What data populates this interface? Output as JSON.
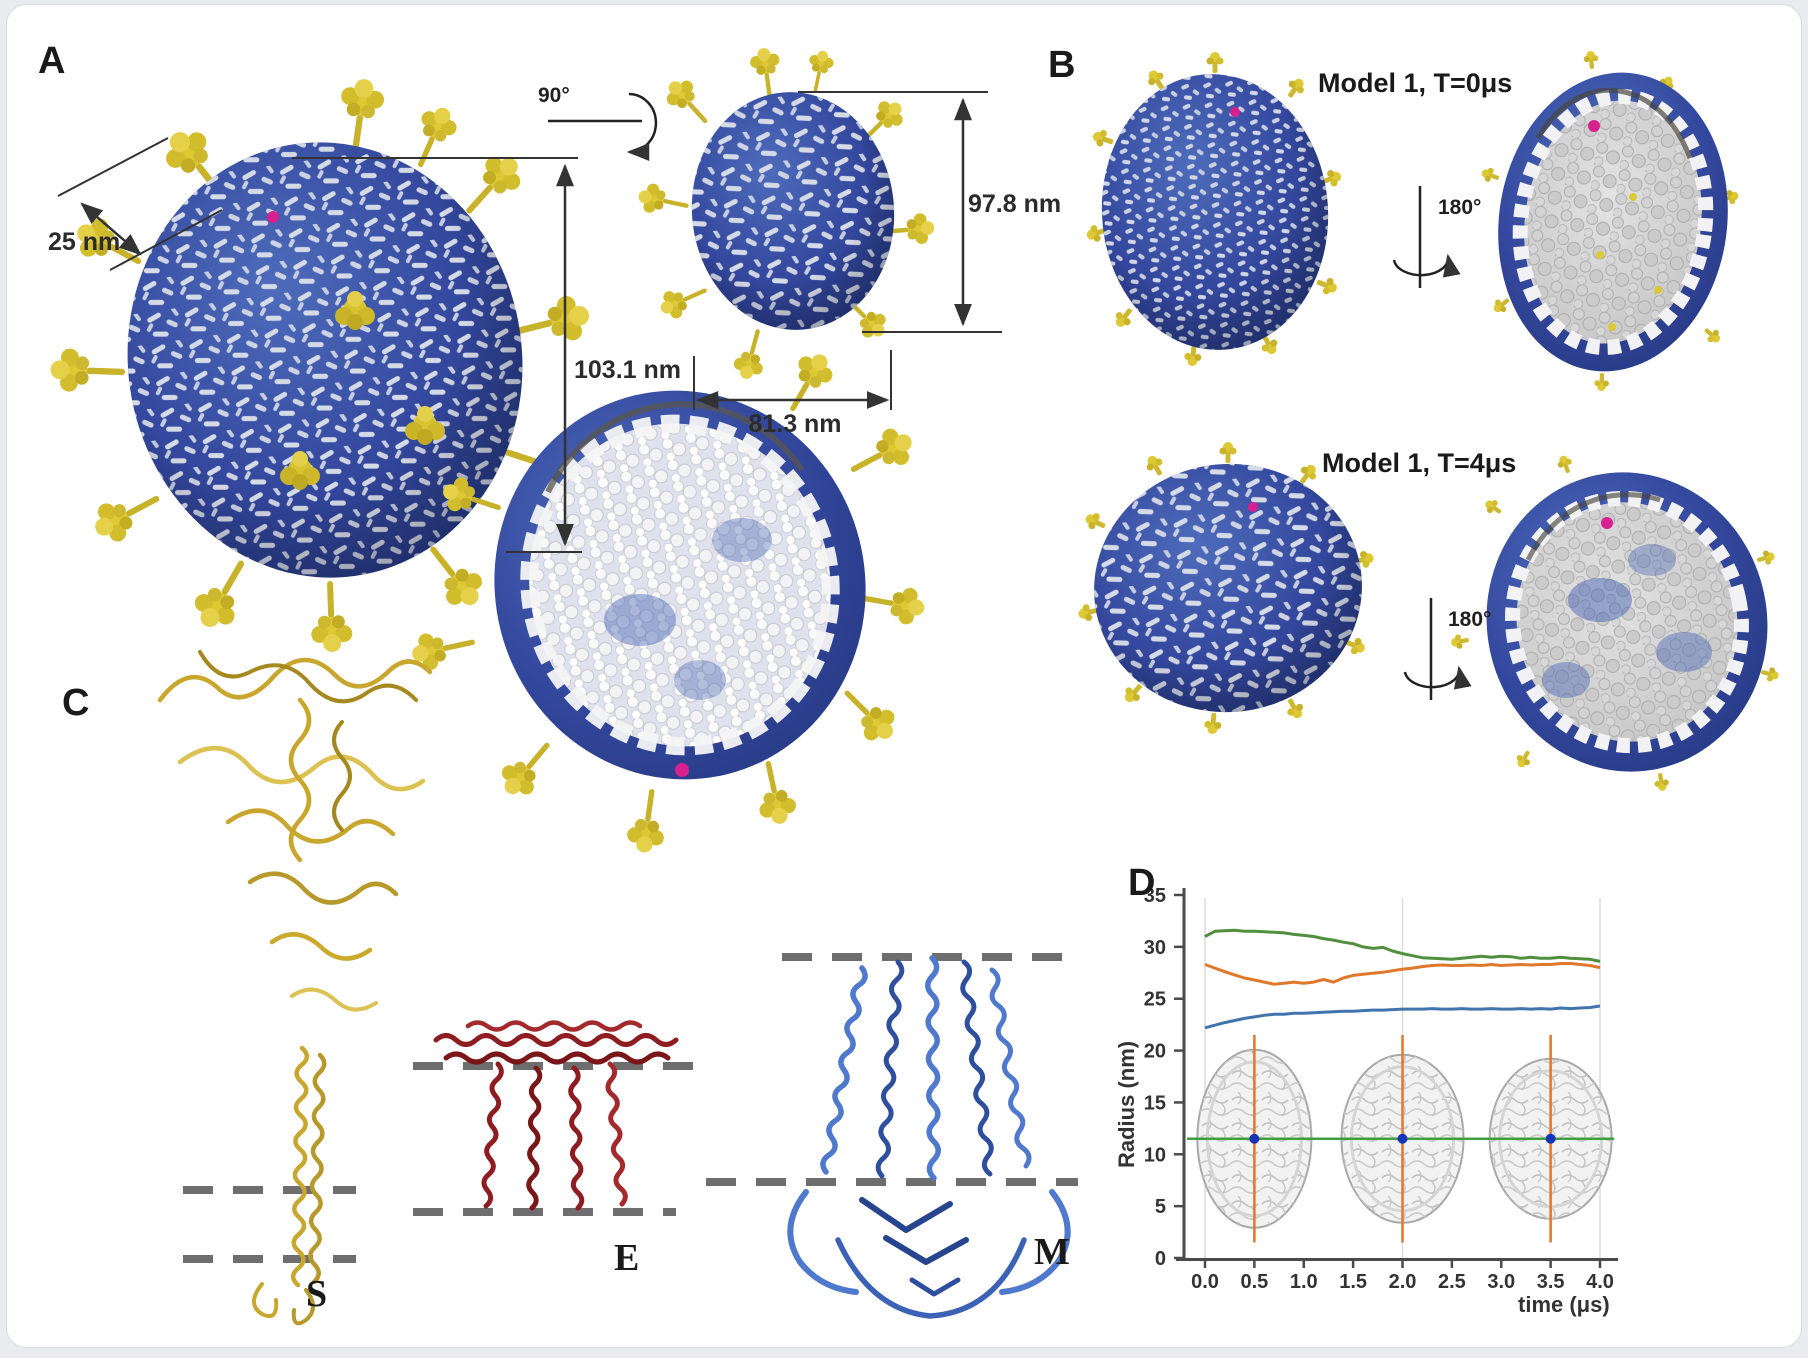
{
  "panel_labels": {
    "a": "A",
    "b": "B",
    "c": "C",
    "d": "D"
  },
  "panel_a": {
    "spike_length_label": "25 nm",
    "rotation_label": "90°",
    "height_label": "103.1 nm",
    "rotated_height_label": "97.8 nm",
    "rotated_width_label": "81.3 nm"
  },
  "panel_b": {
    "row1_title": "Model 1, T=0μs",
    "row1_rotation": "180°",
    "row2_title": "Model 1, T=4μs",
    "row2_rotation": "180°"
  },
  "panel_c": {
    "spike_label": "S",
    "envelope_label": "E",
    "membrane_label": "M"
  },
  "colors": {
    "virion_blue": "#3a55a4",
    "spike_yellow": "#ddc934",
    "magenta_marker": "#d6218e",
    "membrane_dash_gray": "#6e6e6e"
  },
  "chart_data": {
    "type": "line",
    "title": "",
    "xlabel": "time (μs)",
    "ylabel": "Radius (nm)",
    "xlim": [
      0,
      4.3
    ],
    "ylim": [
      0,
      35
    ],
    "x_tick_labels": [
      "0.0",
      "0.5",
      "1.0",
      "1.5",
      "2.0",
      "2.5",
      "3.0",
      "3.5",
      "4.0"
    ],
    "x_tick_values": [
      0.0,
      0.5,
      1.0,
      1.5,
      2.0,
      2.5,
      3.0,
      3.5,
      4.0
    ],
    "y_tick_labels": [
      "0",
      "5",
      "10",
      "15",
      "20",
      "25",
      "30",
      "35"
    ],
    "y_tick_values": [
      0,
      5,
      10,
      15,
      20,
      25,
      30,
      35
    ],
    "grid_x": [
      0.0,
      2.0,
      4.0
    ],
    "grid_on": "vertical-only",
    "legend": "none",
    "x": [
      0.0,
      0.1,
      0.2,
      0.3,
      0.4,
      0.5,
      0.6,
      0.7,
      0.8,
      0.9,
      1.0,
      1.1,
      1.2,
      1.3,
      1.4,
      1.5,
      1.6,
      1.7,
      1.8,
      1.9,
      2.0,
      2.1,
      2.2,
      2.3,
      2.4,
      2.5,
      2.6,
      2.7,
      2.8,
      2.9,
      3.0,
      3.1,
      3.2,
      3.3,
      3.4,
      3.5,
      3.6,
      3.7,
      3.8,
      3.9,
      4.0
    ],
    "series": [
      {
        "name": "green-series",
        "color": "#4f8f3d",
        "values": [
          31.0,
          31.5,
          31.55,
          31.6,
          31.5,
          31.5,
          31.45,
          31.4,
          31.35,
          31.2,
          31.1,
          31.0,
          30.8,
          30.65,
          30.45,
          30.3,
          30.0,
          29.85,
          29.95,
          29.6,
          29.35,
          29.15,
          28.95,
          28.9,
          28.85,
          28.8,
          28.9,
          29.0,
          29.1,
          29.0,
          29.1,
          29.05,
          28.9,
          29.0,
          28.9,
          28.9,
          29.0,
          28.9,
          28.85,
          28.8,
          28.6
        ]
      },
      {
        "name": "orange-series",
        "color": "#e0782c",
        "values": [
          28.3,
          27.95,
          27.6,
          27.3,
          27.0,
          26.8,
          26.6,
          26.4,
          26.5,
          26.6,
          26.5,
          26.6,
          26.85,
          26.6,
          27.0,
          27.25,
          27.35,
          27.45,
          27.55,
          27.7,
          27.85,
          27.95,
          28.1,
          28.2,
          28.25,
          28.2,
          28.2,
          28.25,
          28.2,
          28.3,
          28.2,
          28.25,
          28.3,
          28.25,
          28.3,
          28.3,
          28.4,
          28.4,
          28.3,
          28.2,
          28.0
        ]
      },
      {
        "name": "blue-series",
        "color": "#4173ad",
        "values": [
          22.2,
          22.45,
          22.7,
          22.9,
          23.1,
          23.25,
          23.4,
          23.5,
          23.5,
          23.6,
          23.6,
          23.65,
          23.7,
          23.75,
          23.8,
          23.8,
          23.85,
          23.9,
          23.9,
          23.95,
          24.0,
          24.0,
          24.0,
          24.05,
          24.0,
          24.0,
          24.05,
          24.0,
          24.0,
          24.05,
          24.0,
          24.0,
          24.05,
          24.0,
          24.05,
          24.0,
          24.1,
          24.05,
          24.1,
          24.15,
          24.3
        ]
      }
    ],
    "overlay": {
      "snapshot_times": [
        0.5,
        2.0,
        3.5
      ],
      "crosshair_vertical_color": "#e0782c",
      "crosshair_vertical_span": [
        1.5,
        21.5
      ],
      "crosshair_horizontal_color": "#3f9e3f",
      "crosshair_horizontal_radius": 11.5,
      "center_dot_color": "#1733b8"
    }
  }
}
